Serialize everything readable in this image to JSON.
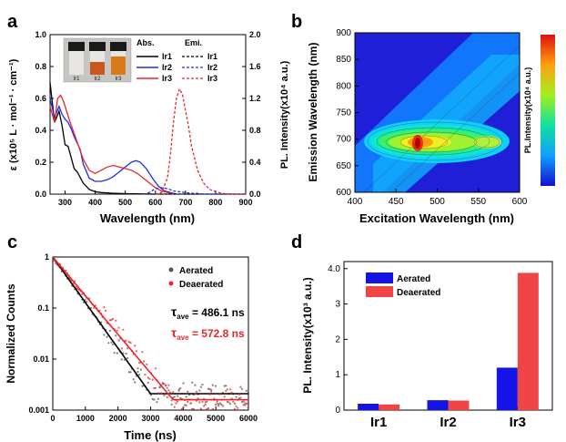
{
  "chart_data": [
    {
      "panel": "a",
      "type": "line",
      "xlabel": "Wavelength (nm)",
      "ylabel_left": "ε (x10⁵ L · mol⁻¹ · cm⁻¹)",
      "ylabel_right": "PL. Intensity(x10⁴ a.u.)",
      "xlim": [
        250,
        900
      ],
      "ylim_left": [
        0,
        1.0
      ],
      "ylim_right": [
        0,
        2.0
      ],
      "xticks": [
        "300",
        "400",
        "500",
        "600",
        "700",
        "800",
        "900"
      ],
      "yticks_left": [
        "0.0",
        "0.2",
        "0.4",
        "0.6",
        "0.8",
        "1.0"
      ],
      "yticks_right": [
        "0.0",
        "0.4",
        "0.8",
        "1.2",
        "1.6",
        "2.0"
      ],
      "legend_headers": {
        "abs": "Abs.",
        "emi": "Emi."
      },
      "inset_labels": [
        "Ir1",
        "Ir2",
        "Ir3"
      ],
      "colors": {
        "Ir1": "#000000",
        "Ir2": "#1f2ee6",
        "Ir3": "#e8262a"
      },
      "series": [
        {
          "name": "Ir1",
          "kind": "Abs.",
          "x": [
            250,
            265,
            280,
            290,
            300,
            310,
            320,
            330,
            340,
            360,
            380,
            400,
            420,
            440,
            460,
            480,
            500,
            550,
            600
          ],
          "y": [
            0.7,
            0.45,
            0.52,
            0.43,
            0.31,
            0.3,
            0.23,
            0.16,
            0.14,
            0.07,
            0.03,
            0.015,
            0.01,
            0.008,
            0.005,
            0.004,
            0.003,
            0.001,
            0.0
          ]
        },
        {
          "name": "Ir2",
          "kind": "Abs.",
          "x": [
            250,
            265,
            280,
            290,
            300,
            310,
            320,
            330,
            340,
            350,
            360,
            380,
            400,
            420,
            440,
            460,
            480,
            500,
            520,
            535,
            550,
            570,
            590,
            610,
            630,
            650,
            670
          ],
          "y": [
            0.6,
            0.48,
            0.55,
            0.5,
            0.47,
            0.45,
            0.41,
            0.36,
            0.32,
            0.28,
            0.19,
            0.1,
            0.08,
            0.08,
            0.09,
            0.11,
            0.14,
            0.17,
            0.2,
            0.21,
            0.2,
            0.16,
            0.1,
            0.05,
            0.02,
            0.01,
            0.0
          ]
        },
        {
          "name": "Ir3",
          "kind": "Abs.",
          "x": [
            250,
            265,
            275,
            285,
            295,
            305,
            315,
            330,
            345,
            360,
            380,
            400,
            420,
            440,
            460,
            480,
            500,
            520,
            540,
            560,
            580,
            600,
            620,
            640,
            660
          ],
          "y": [
            0.55,
            0.45,
            0.6,
            0.62,
            0.58,
            0.52,
            0.46,
            0.38,
            0.3,
            0.22,
            0.15,
            0.13,
            0.15,
            0.17,
            0.18,
            0.17,
            0.16,
            0.15,
            0.13,
            0.1,
            0.07,
            0.04,
            0.02,
            0.01,
            0.0
          ]
        },
        {
          "name": "Ir1",
          "kind": "Emi.",
          "x": [
            600,
            650,
            700,
            750,
            800,
            850,
            900
          ],
          "y": [
            0,
            0,
            0,
            0,
            0,
            0,
            0
          ]
        },
        {
          "name": "Ir2",
          "kind": "Emi.",
          "x": [
            560,
            580,
            600,
            620,
            640,
            660,
            680,
            700,
            720,
            740,
            760,
            800,
            850,
            900
          ],
          "y": [
            0,
            0.02,
            0.07,
            0.08,
            0.07,
            0.04,
            0.03,
            0.02,
            0.01,
            0.01,
            0.0,
            0,
            0,
            0
          ]
        },
        {
          "name": "Ir3",
          "kind": "Emi.",
          "x": [
            600,
            620,
            640,
            650,
            660,
            670,
            680,
            690,
            700,
            710,
            720,
            740,
            760,
            780,
            800,
            820,
            850,
            900
          ],
          "y": [
            0.0,
            0.02,
            0.2,
            0.5,
            0.9,
            1.2,
            1.32,
            1.25,
            1.05,
            0.85,
            0.6,
            0.3,
            0.14,
            0.06,
            0.03,
            0.01,
            0.0,
            0.0
          ]
        }
      ]
    },
    {
      "panel": "b",
      "type": "heatmap",
      "xlabel": "Excitation Wavelength (nm)",
      "ylabel": "Emission Wavelength (nm)",
      "colorbar_label": "PL.Intensity(x10⁴ a.u.)",
      "xlim": [
        400,
        600
      ],
      "ylim": [
        600,
        900
      ],
      "xticks": [
        "400",
        "450",
        "500",
        "550",
        "600"
      ],
      "yticks": [
        "600",
        "650",
        "700",
        "750",
        "800",
        "850",
        "900"
      ],
      "peaks": [
        {
          "ex": 473,
          "em": 685,
          "intensity": 1.0
        },
        {
          "ex": 535,
          "em": 688,
          "intensity": 0.55
        }
      ]
    },
    {
      "panel": "c",
      "type": "scatter",
      "xlabel": "Time (ns)",
      "ylabel": "Normalized Counts",
      "scale_y": "log",
      "xlim": [
        0,
        6000
      ],
      "ylim": [
        0.001,
        1
      ],
      "xticks": [
        "0",
        "1000",
        "2000",
        "3000",
        "4000",
        "5000",
        "6000"
      ],
      "yticks": [
        "1",
        "0.1",
        "0.01",
        "0.001"
      ],
      "legend": [
        "Aerated",
        "Deaerated"
      ],
      "colors": {
        "Aerated": "#555555",
        "Deaerated": "#e8262a"
      },
      "annotations": [
        {
          "prefix": "τ",
          "sub": "ave",
          "text": " = 486.1 ns",
          "color": "#000000"
        },
        {
          "prefix": "τ",
          "sub": "ave",
          "text": " = 572.8 ns",
          "color": "#e8262a"
        }
      ],
      "series": [
        {
          "name": "Aerated",
          "tau_ns": 486.1,
          "floor": 0.0021
        },
        {
          "name": "Deaerated",
          "tau_ns": 572.8,
          "floor": 0.0016
        }
      ]
    },
    {
      "panel": "d",
      "type": "bar",
      "categories": [
        "Ir1",
        "Ir2",
        "Ir3"
      ],
      "ylabel": "PL. Intensity(x10³ a.u.)",
      "ylim": [
        0,
        4.2
      ],
      "yticks": [
        "0",
        "1",
        "2",
        "3",
        "4.0"
      ],
      "series": [
        {
          "name": "Aerated",
          "color": "#1414e6",
          "values": [
            0.18,
            0.28,
            1.2
          ]
        },
        {
          "name": "Deaerated",
          "color": "#f04545",
          "values": [
            0.16,
            0.27,
            3.88
          ]
        }
      ]
    }
  ],
  "panel_labels": [
    "a",
    "b",
    "c",
    "d"
  ]
}
